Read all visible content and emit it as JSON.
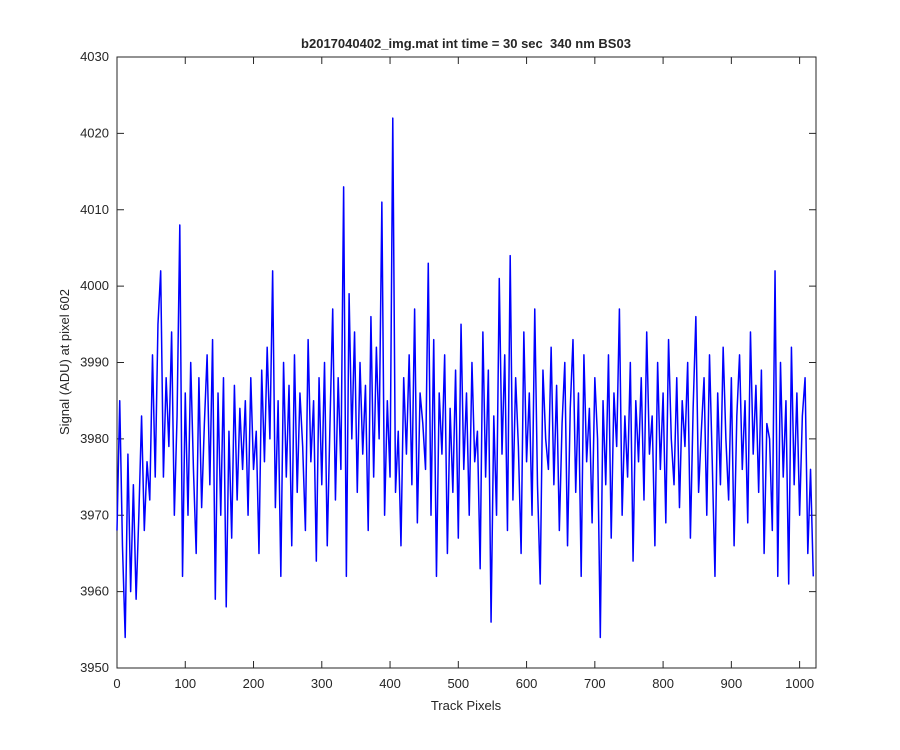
{
  "chart_data": {
    "type": "line",
    "title": "b2017040402_img.mat int time = 30 sec  340 nm BS03",
    "xlabel": "Track Pixels",
    "ylabel": "Signal (ADU) at pixel 602",
    "xlim": [
      0,
      1024
    ],
    "ylim": [
      3950,
      4030
    ],
    "xticks": [
      0,
      100,
      200,
      300,
      400,
      500,
      600,
      700,
      800,
      900,
      1000
    ],
    "yticks": [
      3950,
      3960,
      3970,
      3980,
      3990,
      4000,
      4010,
      4020,
      4030
    ],
    "grid": false,
    "series": [
      {
        "color": "#0000ff",
        "x": [
          0,
          4,
          8,
          12,
          16,
          20,
          24,
          28,
          32,
          36,
          40,
          44,
          48,
          52,
          56,
          60,
          64,
          68,
          72,
          76,
          80,
          84,
          88,
          92,
          96,
          100,
          104,
          108,
          112,
          116,
          120,
          124,
          128,
          132,
          136,
          140,
          144,
          148,
          152,
          156,
          160,
          164,
          168,
          172,
          176,
          180,
          184,
          188,
          192,
          196,
          200,
          204,
          208,
          212,
          216,
          220,
          224,
          228,
          232,
          236,
          240,
          244,
          248,
          252,
          256,
          260,
          264,
          268,
          272,
          276,
          280,
          284,
          288,
          292,
          296,
          300,
          304,
          308,
          312,
          316,
          320,
          324,
          328,
          332,
          336,
          340,
          344,
          348,
          352,
          356,
          360,
          364,
          368,
          372,
          376,
          380,
          384,
          388,
          392,
          396,
          400,
          404,
          408,
          412,
          416,
          420,
          424,
          428,
          432,
          436,
          440,
          444,
          448,
          452,
          456,
          460,
          464,
          468,
          472,
          476,
          480,
          484,
          488,
          492,
          496,
          500,
          504,
          508,
          512,
          516,
          520,
          524,
          528,
          532,
          536,
          540,
          544,
          548,
          552,
          556,
          560,
          564,
          568,
          572,
          576,
          580,
          584,
          588,
          592,
          596,
          600,
          604,
          608,
          612,
          616,
          620,
          624,
          628,
          632,
          636,
          640,
          644,
          648,
          652,
          656,
          660,
          664,
          668,
          672,
          676,
          680,
          684,
          688,
          692,
          696,
          700,
          704,
          708,
          712,
          716,
          720,
          724,
          728,
          732,
          736,
          740,
          744,
          748,
          752,
          756,
          760,
          764,
          768,
          772,
          776,
          780,
          784,
          788,
          792,
          796,
          800,
          804,
          808,
          812,
          816,
          820,
          824,
          828,
          832,
          836,
          840,
          844,
          848,
          852,
          856,
          860,
          864,
          868,
          872,
          876,
          880,
          884,
          888,
          892,
          896,
          900,
          904,
          908,
          912,
          916,
          920,
          924,
          928,
          932,
          936,
          940,
          944,
          948,
          952,
          956,
          960,
          964,
          968,
          972,
          976,
          980,
          984,
          988,
          992,
          996,
          1000,
          1004,
          1008,
          1012,
          1016,
          1020
        ],
        "values": [
          3968,
          3985,
          3966,
          3954,
          3978,
          3960,
          3974,
          3959,
          3970,
          3983,
          3968,
          3977,
          3972,
          3991,
          3975,
          3995,
          4002,
          3975,
          3988,
          3979,
          3994,
          3970,
          3983,
          4008,
          3962,
          3986,
          3970,
          3990,
          3976,
          3965,
          3988,
          3971,
          3982,
          3991,
          3974,
          3993,
          3959,
          3986,
          3970,
          3988,
          3958,
          3981,
          3967,
          3987,
          3972,
          3984,
          3976,
          3985,
          3970,
          3988,
          3976,
          3981,
          3965,
          3989,
          3977,
          3992,
          3980,
          4002,
          3971,
          3985,
          3962,
          3990,
          3975,
          3987,
          3966,
          3991,
          3973,
          3986,
          3979,
          3968,
          3993,
          3977,
          3985,
          3964,
          3988,
          3974,
          3990,
          3966,
          3982,
          3997,
          3972,
          3988,
          3976,
          4013,
          3962,
          3999,
          3980,
          3994,
          3973,
          3990,
          3978,
          3987,
          3968,
          3996,
          3975,
          3992,
          3980,
          4011,
          3970,
          3985,
          3975,
          4022,
          3973,
          3981,
          3966,
          3988,
          3978,
          3991,
          3974,
          3997,
          3969,
          3986,
          3982,
          3976,
          4003,
          3970,
          3993,
          3962,
          3986,
          3978,
          3991,
          3965,
          3984,
          3973,
          3989,
          3967,
          3995,
          3976,
          3986,
          3970,
          3990,
          3977,
          3981,
          3963,
          3994,
          3975,
          3989,
          3956,
          3983,
          3970,
          4001,
          3978,
          3991,
          3968,
          4004,
          3972,
          3988,
          3979,
          3965,
          3994,
          3977,
          3986,
          3970,
          3997,
          3974,
          3961,
          3989,
          3980,
          3976,
          3992,
          3974,
          3987,
          3968,
          3982,
          3990,
          3966,
          3984,
          3993,
          3973,
          3986,
          3962,
          3991,
          3977,
          3984,
          3969,
          3988,
          3980,
          3954,
          3985,
          3974,
          3991,
          3967,
          3986,
          3979,
          3997,
          3970,
          3983,
          3975,
          3990,
          3964,
          3985,
          3977,
          3988,
          3972,
          3994,
          3978,
          3983,
          3966,
          3990,
          3976,
          3986,
          3969,
          3993,
          3980,
          3974,
          3988,
          3971,
          3985,
          3979,
          3990,
          3967,
          3984,
          3996,
          3973,
          3981,
          3988,
          3970,
          3991,
          3977,
          3962,
          3986,
          3974,
          3992,
          3980,
          3972,
          3988,
          3966,
          3983,
          3991,
          3976,
          3985,
          3969,
          3994,
          3978,
          3987,
          3973,
          3989,
          3965,
          3982,
          3980,
          3968,
          4002,
          3962,
          3990,
          3975,
          3985,
          3961,
          3992,
          3974,
          3986,
          3970,
          3983,
          3988,
          3965,
          3976,
          3962
        ]
      }
    ]
  }
}
